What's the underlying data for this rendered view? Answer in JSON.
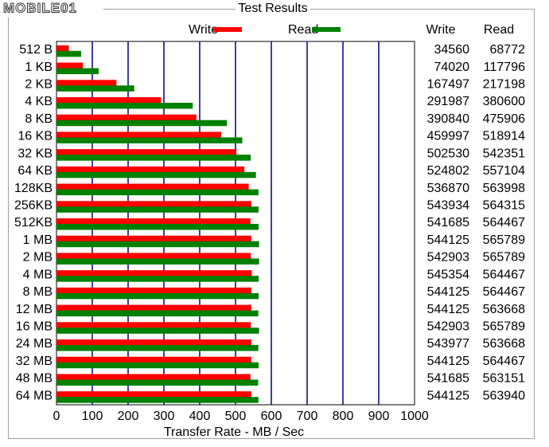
{
  "watermark": "MOBILE01",
  "chart_data": {
    "type": "hbar",
    "title": "Test Results",
    "xlabel": "Transfer Rate - MB / Sec",
    "categories": [
      "512 B",
      "1 KB",
      "2 KB",
      "4 KB",
      "8 KB",
      "16 KB",
      "32 KB",
      "64 KB",
      "128KB",
      "256KB",
      "512KB",
      "1 MB",
      "2 MB",
      "4 MB",
      "8 MB",
      "12 MB",
      "16 MB",
      "24 MB",
      "32 MB",
      "48 MB",
      "64 MB"
    ],
    "series": [
      {
        "name": "Write",
        "color": "#ff0000",
        "values": [
          34.56,
          74.02,
          167.497,
          291.987,
          390.84,
          459.997,
          502.53,
          524.802,
          536.87,
          543.934,
          541.685,
          544.125,
          542.903,
          545.354,
          544.125,
          544.125,
          542.903,
          543.977,
          544.125,
          541.685,
          544.125
        ],
        "value_labels": [
          "34560",
          "74020",
          "167497",
          "291987",
          "390840",
          "459997",
          "502530",
          "524802",
          "536870",
          "543934",
          "541685",
          "544125",
          "542903",
          "545354",
          "544125",
          "544125",
          "542903",
          "543977",
          "544125",
          "541685",
          "544125"
        ]
      },
      {
        "name": "Read",
        "color": "#008000",
        "values": [
          68.772,
          117.796,
          217.198,
          380.6,
          475.906,
          518.914,
          542.351,
          557.104,
          563.998,
          564.315,
          564.467,
          565.789,
          565.789,
          564.467,
          564.467,
          563.668,
          565.789,
          563.668,
          564.467,
          563.151,
          563.94
        ],
        "value_labels": [
          "68772",
          "117796",
          "217198",
          "380600",
          "475906",
          "518914",
          "542351",
          "557104",
          "563998",
          "564315",
          "564467",
          "565789",
          "565789",
          "564467",
          "564467",
          "563668",
          "565789",
          "563668",
          "564467",
          "563151",
          "563940"
        ]
      }
    ],
    "xlim": [
      0,
      1000
    ],
    "xticks": [
      0,
      100,
      200,
      300,
      400,
      500,
      600,
      700,
      800,
      900,
      1000
    ],
    "grid": true,
    "grid_color": "#000080"
  }
}
